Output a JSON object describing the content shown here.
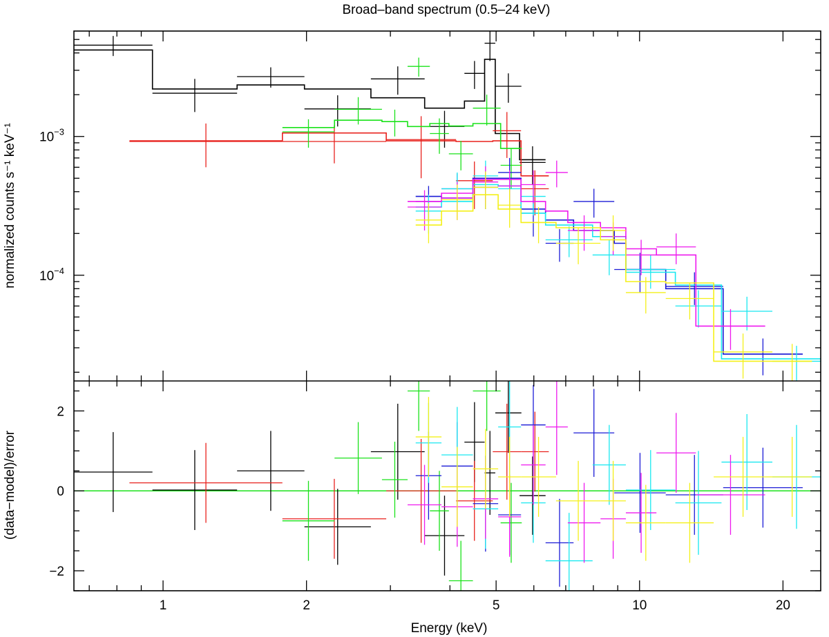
{
  "chart_data": {
    "type": "line",
    "title": "Broad–band spectrum (0.5–24 keV)",
    "xlabel": "Energy (keV)",
    "xscale": "log",
    "xlim": [
      0.65,
      24
    ],
    "colors": {
      "black": "#000000",
      "red": "#e8201c",
      "green": "#19e219",
      "blue": "#1a1ad6",
      "cyan": "#18e8f0",
      "magenta": "#ee18ee",
      "yellow": "#f4f018"
    },
    "top_panel": {
      "ylabel": "normalized counts s⁻¹ keV⁻¹",
      "yscale": "log",
      "ylim": [
        1.73e-05,
        0.00575
      ],
      "yticks": [
        {
          "value": 0.001,
          "base": "10",
          "exp": "−3"
        },
        {
          "value": 0.0001,
          "base": "10",
          "exp": "−4"
        }
      ]
    },
    "bottom_panel": {
      "ylabel": "(data−model)/error",
      "ylim": [
        -2.5,
        2.75
      ],
      "yticks": [
        {
          "value": 2,
          "label": "2"
        },
        {
          "value": 0,
          "label": "0"
        },
        {
          "value": -2,
          "label": "−2"
        }
      ],
      "zero_line_color": "#19e219"
    },
    "xticks": [
      {
        "value": 1,
        "label": "1"
      },
      {
        "value": 2,
        "label": "2"
      },
      {
        "value": 5,
        "label": "5"
      },
      {
        "value": 10,
        "label": "10"
      },
      {
        "value": 20,
        "label": "20"
      }
    ],
    "series": [
      {
        "name": "black",
        "color": "black",
        "data": [
          [
            0.65,
            0.95,
            0.00455,
            0.00075,
            0.47,
            1.0
          ],
          [
            0.95,
            1.43,
            0.00205,
            0.00055,
            0.02,
            1.0
          ],
          [
            1.43,
            1.98,
            0.0027,
            0.00045,
            0.5,
            1.0
          ],
          [
            1.98,
            2.73,
            0.00158,
            0.0004,
            -0.9,
            0.95
          ],
          [
            2.73,
            3.54,
            0.0026,
            0.0006,
            0.98,
            1.2
          ],
          [
            3.54,
            4.29,
            0.00118,
            0.00035,
            -1.12,
            1.0
          ],
          [
            4.29,
            4.73,
            0.00285,
            0.00065,
            1.22,
            1.0
          ],
          [
            4.73,
            4.98,
            0.0047,
            0.0012,
            0.45,
            1.05
          ],
          [
            4.98,
            5.65,
            0.0023,
            0.00055,
            1.95,
            1.0
          ],
          [
            5.6,
            6.35,
            0.00065,
            0.0002,
            -0.12,
            0.98
          ]
        ],
        "model": [
          [
            0.65,
            0.0042
          ],
          [
            0.95,
            0.0022
          ],
          [
            1.43,
            0.00235
          ],
          [
            1.98,
            0.0022
          ],
          [
            2.73,
            0.0019
          ],
          [
            3.54,
            0.0016
          ],
          [
            4.29,
            0.0018
          ],
          [
            4.73,
            0.0036
          ],
          [
            4.98,
            0.00105
          ],
          [
            5.6,
            0.00068
          ],
          [
            6.35,
            0.00068
          ]
        ]
      },
      {
        "name": "red",
        "color": "red",
        "data": [
          [
            0.85,
            1.78,
            0.00092,
            0.00032,
            0.2,
            1.0
          ],
          [
            1.78,
            2.94,
            0.00092,
            0.00028,
            -0.7,
            1.0
          ],
          [
            2.94,
            4.12,
            0.00095,
            0.00045,
            0.0,
            1.3
          ],
          [
            4.12,
            4.92,
            0.00048,
            0.00018,
            -0.25,
            1.0
          ],
          [
            4.92,
            5.64,
            0.0011,
            0.0004,
            0.98,
            1.2
          ],
          [
            5.64,
            6.45,
            0.00042,
            0.00015,
            0.98,
            1.0
          ]
        ],
        "model": [
          [
            0.85,
            0.00093
          ],
          [
            1.78,
            0.00106
          ],
          [
            2.94,
            0.00093
          ],
          [
            4.12,
            0.00092
          ],
          [
            4.92,
            0.00093
          ],
          [
            5.64,
            0.00052
          ],
          [
            6.45,
            0.00052
          ]
        ]
      },
      {
        "name": "green",
        "color": "green",
        "data": [
          [
            1.78,
            2.29,
            0.00108,
            0.00025,
            -0.75,
            1.0
          ],
          [
            2.29,
            2.88,
            0.00157,
            0.00035,
            0.82,
            0.9
          ],
          [
            2.88,
            3.26,
            0.00128,
            0.00028,
            0.28,
            0.95
          ],
          [
            3.26,
            3.63,
            0.0032,
            0.0005,
            2.5,
            1.0
          ],
          [
            3.63,
            3.98,
            0.00105,
            0.0003,
            -0.5,
            1.0
          ],
          [
            3.98,
            4.47,
            0.00075,
            0.00018,
            -2.25,
            1.0
          ],
          [
            4.47,
            5.11,
            0.0016,
            0.0004,
            2.5,
            1.0
          ],
          [
            5.11,
            5.66,
            0.00062,
            0.0002,
            -0.8,
            1.0
          ]
        ],
        "model": [
          [
            1.78,
            0.00116
          ],
          [
            2.29,
            0.00131
          ],
          [
            2.88,
            0.00128
          ],
          [
            3.26,
            0.00118
          ],
          [
            3.63,
            0.00124
          ],
          [
            3.98,
            0.00119
          ],
          [
            4.47,
            0.00124
          ],
          [
            5.11,
            0.00082
          ],
          [
            5.66,
            0.00082
          ]
        ]
      },
      {
        "name": "blue",
        "color": "blue",
        "data": [
          [
            3.39,
            3.84,
            0.00034,
            0.0001,
            0.38,
            1.1
          ],
          [
            3.84,
            4.47,
            0.00042,
            0.00012,
            0.62,
            1.1
          ],
          [
            4.47,
            5.05,
            0.00043,
            0.00013,
            -0.32,
            1.2
          ],
          [
            5.05,
            5.64,
            0.00055,
            0.00015,
            -0.6,
            1.0
          ],
          [
            5.64,
            6.35,
            0.00028,
            9e-05,
            1.65,
            1.0
          ],
          [
            6.35,
            7.27,
            0.00017,
            4.5e-05,
            -1.3,
            1.1
          ],
          [
            7.27,
            8.85,
            0.00034,
            8e-05,
            1.45,
            1.1
          ],
          [
            8.85,
            11.35,
            0.00011,
            3.5e-05,
            -0.05,
            1.0
          ],
          [
            11.35,
            14.98,
            8.3e-05,
            2.2e-05,
            -0.1,
            1.0
          ],
          [
            14.98,
            22.0,
            2.7e-05,
            8e-06,
            0.08,
            1.0
          ]
        ],
        "model": [
          [
            3.39,
            0.00037
          ],
          [
            3.84,
            0.00036
          ],
          [
            4.47,
            0.0005
          ],
          [
            5.64,
            0.0003
          ],
          [
            6.35,
            0.00025
          ],
          [
            7.27,
            0.00021
          ],
          [
            8.85,
            0.00017
          ],
          [
            9.36,
            0.00011
          ],
          [
            11.35,
            8e-05
          ],
          [
            13.92,
            8e-05
          ],
          [
            14.98,
            2.7e-05
          ],
          [
            22.0,
            2.7e-05
          ]
        ]
      },
      {
        "name": "cyan",
        "color": "cyan",
        "data": [
          [
            3.39,
            3.84,
            0.00029,
            9e-05,
            1.2,
            1.0
          ],
          [
            3.84,
            4.47,
            0.00042,
            0.00013,
            0.9,
            1.2
          ],
          [
            4.47,
            5.05,
            0.00052,
            0.00015,
            -0.45,
            1.0
          ],
          [
            5.05,
            5.64,
            0.00042,
            0.00012,
            1.6,
            1.2
          ],
          [
            5.64,
            6.35,
            0.00037,
            0.0001,
            -0.3,
            1.0
          ],
          [
            6.35,
            7.97,
            0.00018,
            4.5e-05,
            -1.75,
            1.2
          ],
          [
            7.97,
            9.36,
            0.00014,
            4e-05,
            0.65,
            1.0
          ],
          [
            9.36,
            11.89,
            0.00011,
            3e-05,
            0.02,
            1.0
          ],
          [
            11.89,
            14.86,
            6e-05,
            1.8e-05,
            -0.3,
            1.3
          ],
          [
            14.86,
            19.0,
            5.5e-05,
            1.5e-05,
            0.72,
            1.2
          ],
          [
            19.0,
            24.0,
            2.4e-05,
            7e-06,
            0.35,
            1.3
          ]
        ],
        "model": [
          [
            3.39,
            0.00031
          ],
          [
            3.84,
            0.00034
          ],
          [
            4.47,
            0.00045
          ],
          [
            5.05,
            0.00044
          ],
          [
            5.64,
            0.00028
          ],
          [
            6.35,
            0.00023
          ],
          [
            7.97,
            0.00019
          ],
          [
            9.36,
            0.000105
          ],
          [
            11.89,
            8.5e-05
          ],
          [
            13.92,
            8.5e-05
          ],
          [
            14.86,
            2.5e-05
          ],
          [
            19.0,
            2.5e-05
          ],
          [
            24.0,
            2.5e-05
          ]
        ]
      },
      {
        "name": "magenta",
        "color": "magenta",
        "data": [
          [
            3.26,
            3.84,
            0.00031,
            0.0001,
            -0.35,
            1.0
          ],
          [
            3.84,
            4.47,
            0.00036,
            0.00011,
            -0.4,
            1.0
          ],
          [
            4.47,
            5.05,
            0.00047,
            0.00014,
            -0.2,
            1.0
          ],
          [
            5.05,
            5.64,
            0.00044,
            0.00013,
            -0.65,
            1.0
          ],
          [
            5.64,
            6.35,
            0.00045,
            0.00012,
            0.65,
            1.0
          ],
          [
            6.35,
            7.07,
            0.00055,
            0.00012,
            1.6,
            1.2
          ],
          [
            7.07,
            8.28,
            0.00021,
            6e-05,
            -0.8,
            1.0
          ],
          [
            8.28,
            9.36,
            0.00019,
            5e-05,
            -0.7,
            1.0
          ],
          [
            9.36,
            10.85,
            0.00014,
            4e-05,
            -0.55,
            1.0
          ],
          [
            10.85,
            13.13,
            0.00016,
            4e-05,
            0.95,
            1.0
          ],
          [
            13.13,
            18.35,
            4.3e-05,
            1.4e-05,
            -0.1,
            1.0
          ]
        ],
        "model": [
          [
            3.26,
            0.00034
          ],
          [
            3.84,
            0.00039
          ],
          [
            4.47,
            0.00049
          ],
          [
            5.05,
            0.00049
          ],
          [
            5.64,
            0.00034
          ],
          [
            6.35,
            0.00029
          ],
          [
            7.07,
            0.00024
          ],
          [
            8.28,
            0.00022
          ],
          [
            9.36,
            0.000155
          ],
          [
            10.85,
            0.00014
          ],
          [
            13.13,
            4.3e-05
          ],
          [
            18.35,
            4.3e-05
          ]
        ]
      },
      {
        "name": "yellow",
        "color": "yellow",
        "data": [
          [
            3.39,
            3.84,
            0.00025,
            8e-05,
            1.35,
            1.0
          ],
          [
            3.84,
            4.47,
            0.00035,
            0.0001,
            0.1,
            1.0
          ],
          [
            4.47,
            5.05,
            0.00043,
            0.00013,
            0.55,
            1.0
          ],
          [
            5.05,
            5.64,
            0.00032,
            0.0001,
            0.35,
            1.0
          ],
          [
            5.64,
            6.68,
            0.00024,
            7e-05,
            0.35,
            1.0
          ],
          [
            6.68,
            8.28,
            0.00017,
            5e-05,
            -0.25,
            1.0
          ],
          [
            8.28,
            9.36,
            0.00021,
            6e-05,
            -0.25,
            1.0
          ],
          [
            9.36,
            11.35,
            7.5e-05,
            2.2e-05,
            -0.8,
            0.95
          ],
          [
            11.35,
            14.31,
            6.8e-05,
            2e-05,
            -0.8,
            1.0
          ],
          [
            14.31,
            19.0,
            2.8e-05,
            1e-05,
            0.35,
            1.0
          ],
          [
            19.0,
            23.0,
            2.4e-05,
            8e-06,
            0.35,
            1.0
          ]
        ],
        "model": [
          [
            3.39,
            0.00023
          ],
          [
            3.84,
            0.00029
          ],
          [
            4.47,
            0.00038
          ],
          [
            5.05,
            0.0003
          ],
          [
            5.64,
            0.00024
          ],
          [
            6.68,
            0.00022
          ],
          [
            8.28,
            0.00018
          ],
          [
            9.36,
            9e-05
          ],
          [
            11.35,
            8.8e-05
          ],
          [
            13.5,
            8.8e-05
          ],
          [
            14.31,
            2.4e-05
          ],
          [
            19.0,
            2.4e-05
          ],
          [
            23.0,
            2.4e-05
          ]
        ]
      }
    ]
  }
}
